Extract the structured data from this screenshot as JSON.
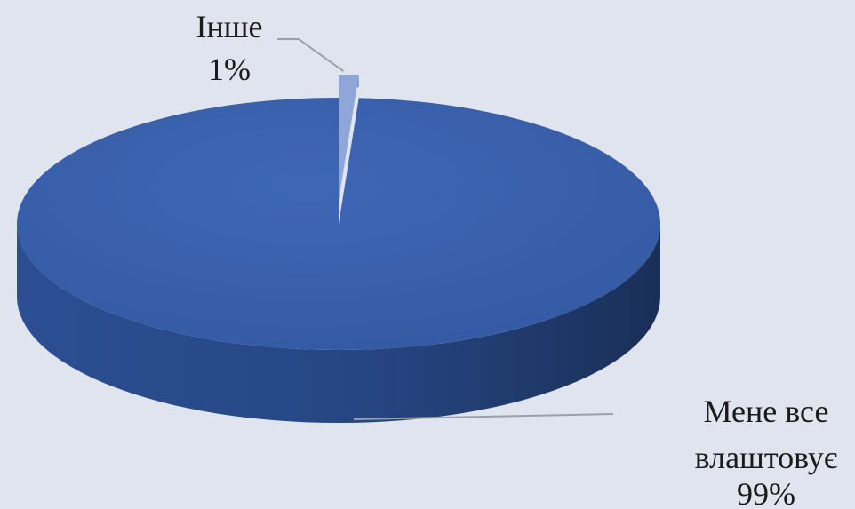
{
  "chart_data": {
    "type": "pie",
    "title": "",
    "style": "3d",
    "legend": "none",
    "slices": [
      {
        "label_lines": [
          "Мене все",
          "влаштовує"
        ],
        "value": 99,
        "value_label": "99%",
        "color": "#3a62ae"
      },
      {
        "label_lines": [
          "Інше"
        ],
        "value": 1,
        "value_label": "1%",
        "color": "#8fa6d8"
      }
    ]
  }
}
